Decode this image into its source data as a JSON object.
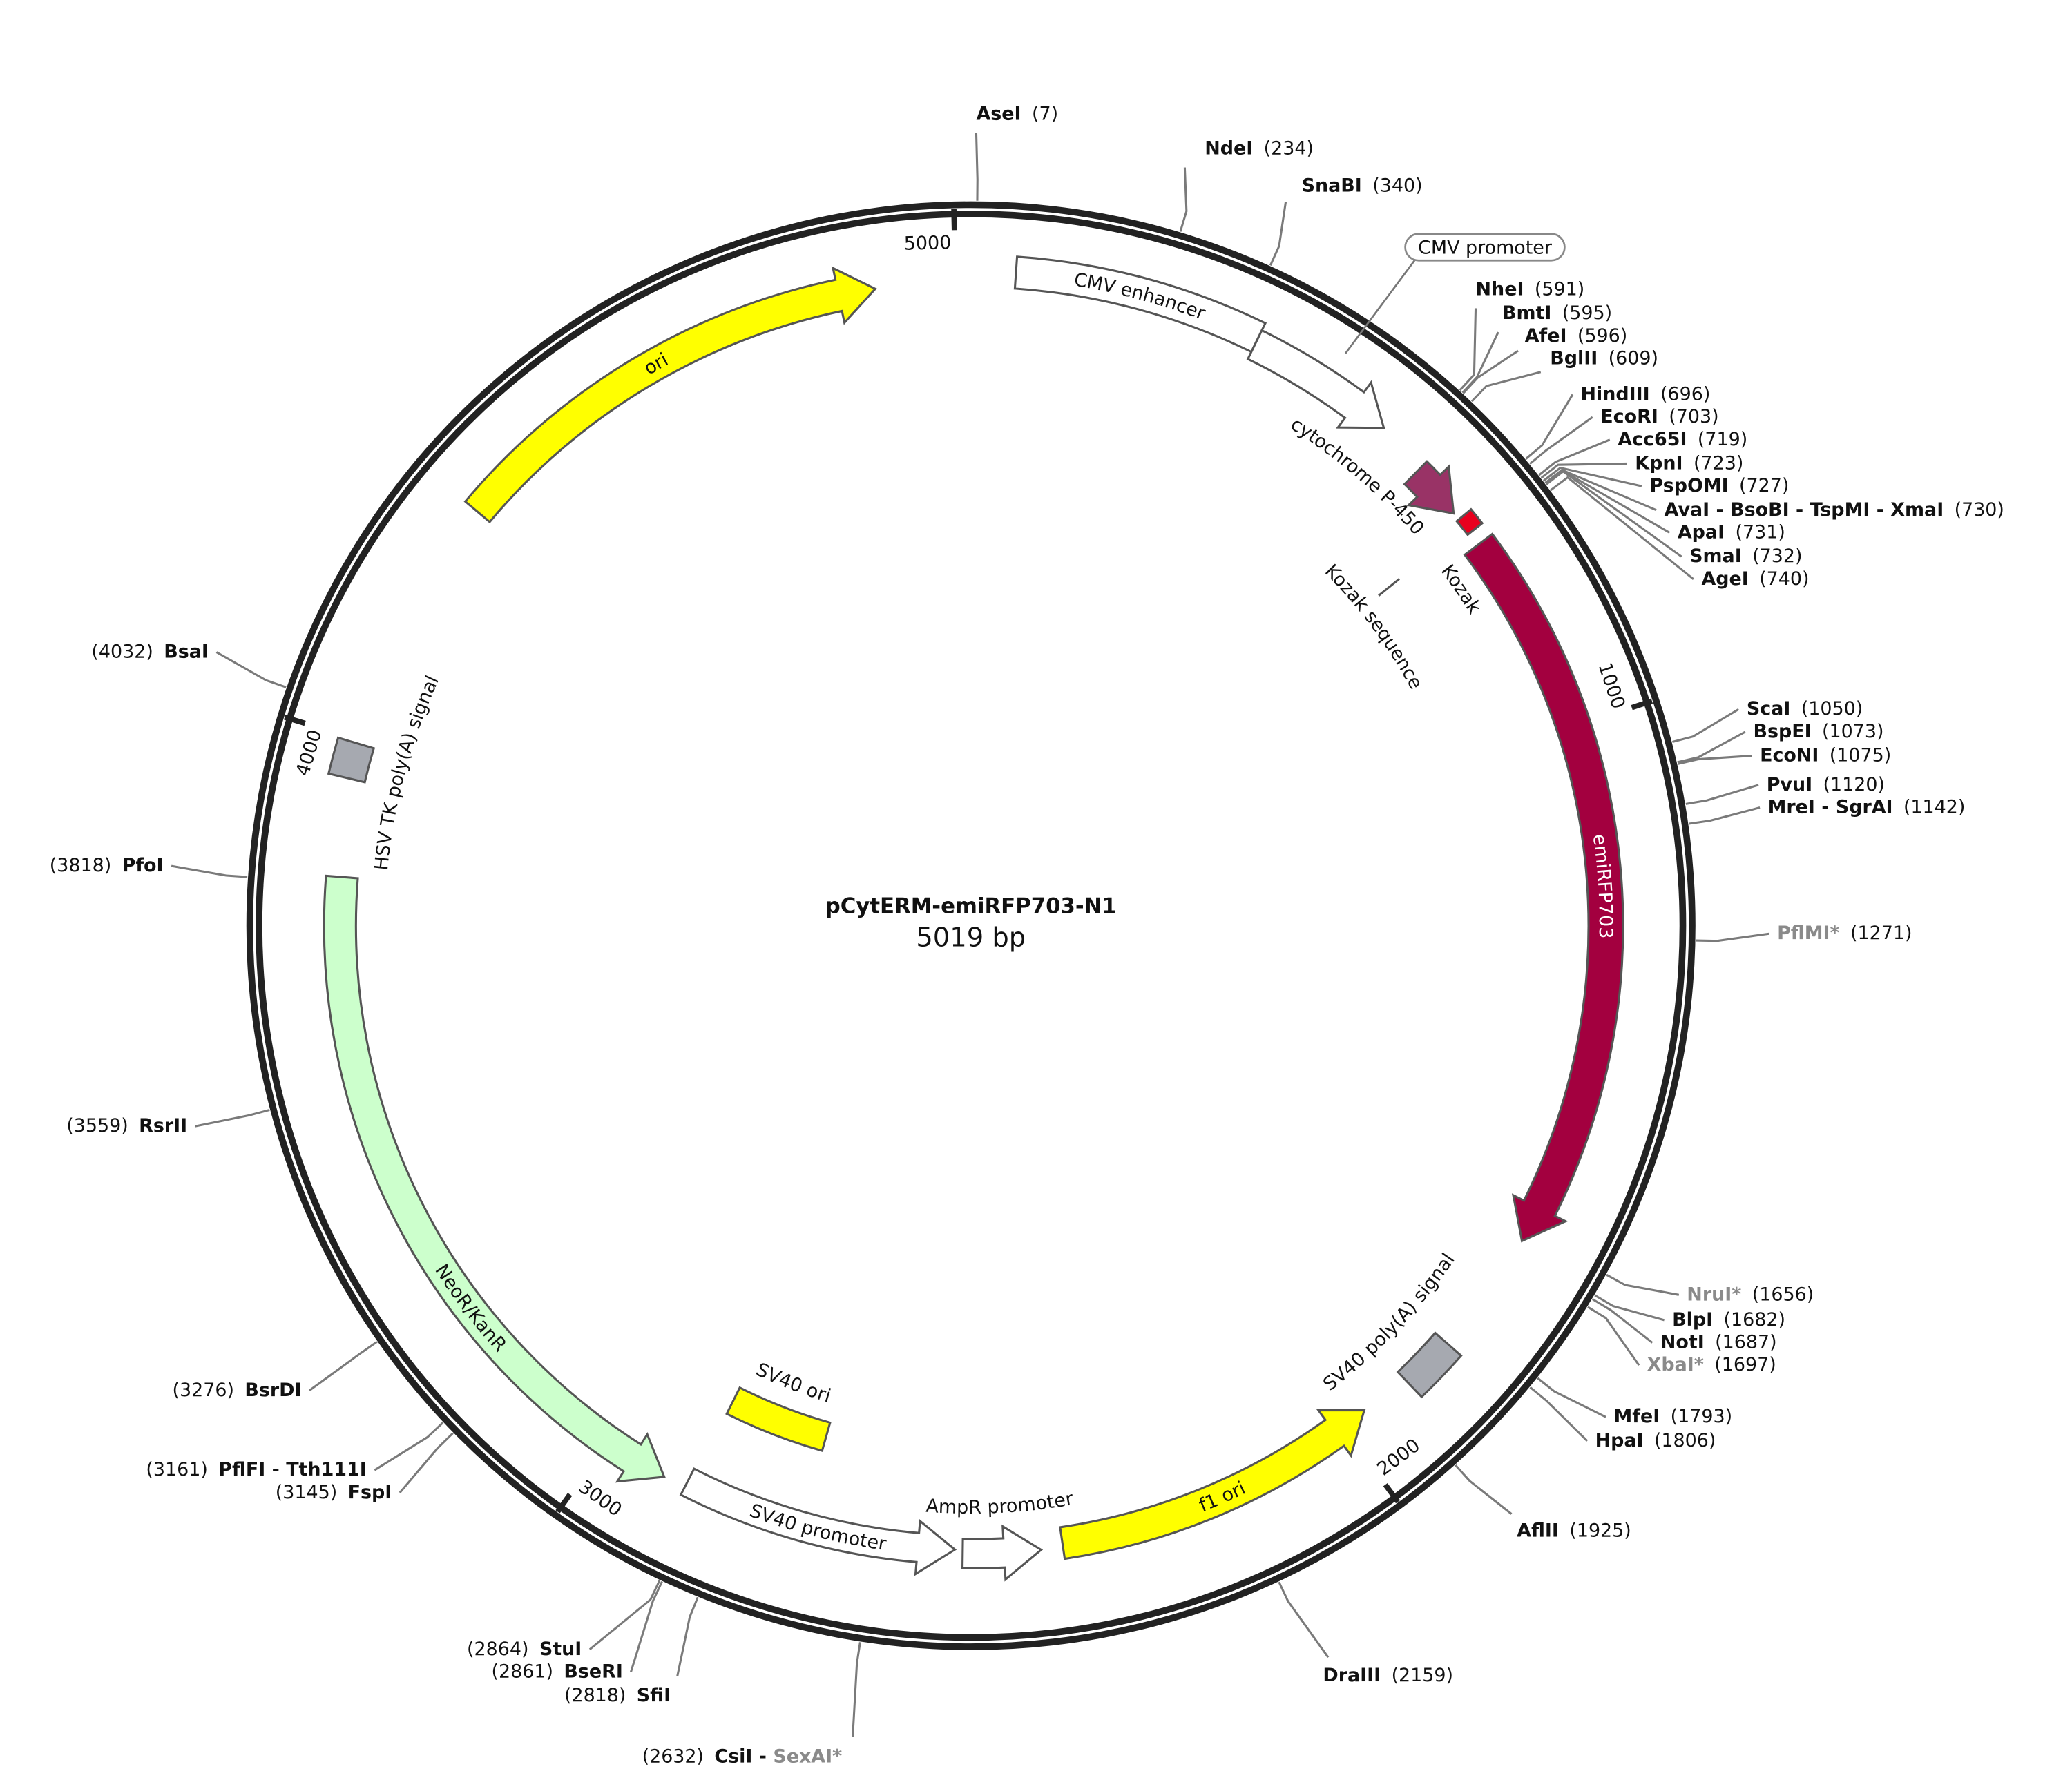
{
  "title": "pCytERM-emiRFP703-N1",
  "length": 5019,
  "length_label": "5019 bp",
  "ticks": [
    1000,
    2000,
    3000,
    4000,
    5000
  ],
  "features": [
    {
      "name": "CMV enhancer",
      "start": 55,
      "end": 363,
      "color": "#ffffff",
      "direction": "none"
    },
    {
      "name": "CMV promoter",
      "start": 363,
      "end": 553,
      "color": "#ffffff",
      "direction": "forward"
    },
    {
      "name": "cytochrome P-450",
      "start": 620,
      "end": 690,
      "color": "#993366",
      "direction": "forward"
    },
    {
      "name": "Kozak",
      "start": 700,
      "end": 722,
      "color": "#e8001e",
      "direction": "none"
    },
    {
      "name": "Kozak sequence",
      "start": 700,
      "end": 722
    },
    {
      "name": "emiRFP703",
      "start": 740,
      "end": 1670,
      "color": "#a3003f",
      "direction": "forward"
    },
    {
      "name": "SV40 poly(A) signal",
      "start": 1830,
      "end": 1900,
      "color": "#a6a9b0",
      "direction": "none"
    },
    {
      "name": "f1 ori",
      "start": 1965,
      "end": 2392,
      "color": "#ffff00",
      "direction": "reverse"
    },
    {
      "name": "AmpR promoter",
      "start": 2420,
      "end": 2520,
      "color": "#ffffff",
      "direction": "reverse"
    },
    {
      "name": "SV40 promoter",
      "start": 2530,
      "end": 2886,
      "color": "#ffffff",
      "direction": "reverse"
    },
    {
      "name": "SV40 ori",
      "start": 2730,
      "end": 2880,
      "color": "#ffff00",
      "direction": "none"
    },
    {
      "name": "NeoR/KanR",
      "start": 2915,
      "end": 3826,
      "color": "#ccffcc",
      "direction": "reverse"
    },
    {
      "name": "HSV TK poly(A) signal",
      "start": 3950,
      "end": 3995,
      "color": "#a6a9b0",
      "direction": "none"
    },
    {
      "name": "ori",
      "start": 4322,
      "end": 4900,
      "color": "#ffff00",
      "direction": "forward"
    }
  ],
  "sites": [
    {
      "name": "AseI",
      "bp": 7,
      "label": "(7)"
    },
    {
      "name": "NdeI",
      "bp": 234,
      "label": "(234)"
    },
    {
      "name": "SnaBI",
      "bp": 340,
      "label": "(340)"
    },
    {
      "name": "NheI",
      "bp": 591,
      "label": "(591)"
    },
    {
      "name": "BmtI",
      "bp": 595,
      "label": "(595)"
    },
    {
      "name": "AfeI",
      "bp": 596,
      "label": "(596)"
    },
    {
      "name": "BglII",
      "bp": 609,
      "label": "(609)"
    },
    {
      "name": "HindIII",
      "bp": 696,
      "label": "(696)"
    },
    {
      "name": "EcoRI",
      "bp": 703,
      "label": "(703)"
    },
    {
      "name": "Acc65I",
      "bp": 719,
      "label": "(719)"
    },
    {
      "name": "KpnI",
      "bp": 723,
      "label": "(723)"
    },
    {
      "name": "PspOMI",
      "bp": 727,
      "label": "(727)"
    },
    {
      "name": "AvaI - BsoBI - TspMI - XmaI",
      "bp": 730,
      "label": "(730)"
    },
    {
      "name": "ApaI",
      "bp": 731,
      "label": "(731)"
    },
    {
      "name": "SmaI",
      "bp": 732,
      "label": "(732)"
    },
    {
      "name": "AgeI",
      "bp": 740,
      "label": "(740)"
    },
    {
      "name": "ScaI",
      "bp": 1050,
      "label": "(1050)"
    },
    {
      "name": "BspEI",
      "bp": 1073,
      "label": "(1073)"
    },
    {
      "name": "EcoNI",
      "bp": 1075,
      "label": "(1075)"
    },
    {
      "name": "PvuI",
      "bp": 1120,
      "label": "(1120)"
    },
    {
      "name": "MreI - SgrAI",
      "bp": 1142,
      "label": "(1142)"
    },
    {
      "muted_name": "PflMI*",
      "bp": 1271,
      "label": "(1271)"
    },
    {
      "muted_name": "NruI*",
      "bp": 1656,
      "label": "(1656)"
    },
    {
      "name": "BlpI",
      "bp": 1682,
      "label": "(1682)"
    },
    {
      "name": "NotI",
      "bp": 1687,
      "label": "(1687)"
    },
    {
      "muted_name": "XbaI*",
      "bp": 1697,
      "label": "(1697)"
    },
    {
      "name": "MfeI",
      "bp": 1793,
      "label": "(1793)"
    },
    {
      "name": "HpaI",
      "bp": 1806,
      "label": "(1806)"
    },
    {
      "name": "AflII",
      "bp": 1925,
      "label": "(1925)"
    },
    {
      "name": "DraIII",
      "bp": 2159,
      "label": "(2159)"
    },
    {
      "name": "CsiI - ",
      "muted_name": "SexAI*",
      "bp": 2632,
      "label": "(2632)"
    },
    {
      "name": "SfiI",
      "bp": 2818,
      "label": "(2818)"
    },
    {
      "name": "BseRI",
      "bp": 2861,
      "label": "(2861)"
    },
    {
      "name": "StuI",
      "bp": 2864,
      "label": "(2864)"
    },
    {
      "name": "FspI",
      "bp": 3145,
      "label": "(3145)"
    },
    {
      "name": "PflFI - Tth111I",
      "bp": 3161,
      "label": "(3161)"
    },
    {
      "name": "BsrDI",
      "bp": 3276,
      "label": "(3276)"
    },
    {
      "name": "RsrII",
      "bp": 3559,
      "label": "(3559)"
    },
    {
      "name": "PfoI",
      "bp": 3818,
      "label": "(3818)"
    },
    {
      "name": "BsaI",
      "bp": 4032,
      "label": "(4032)"
    }
  ]
}
